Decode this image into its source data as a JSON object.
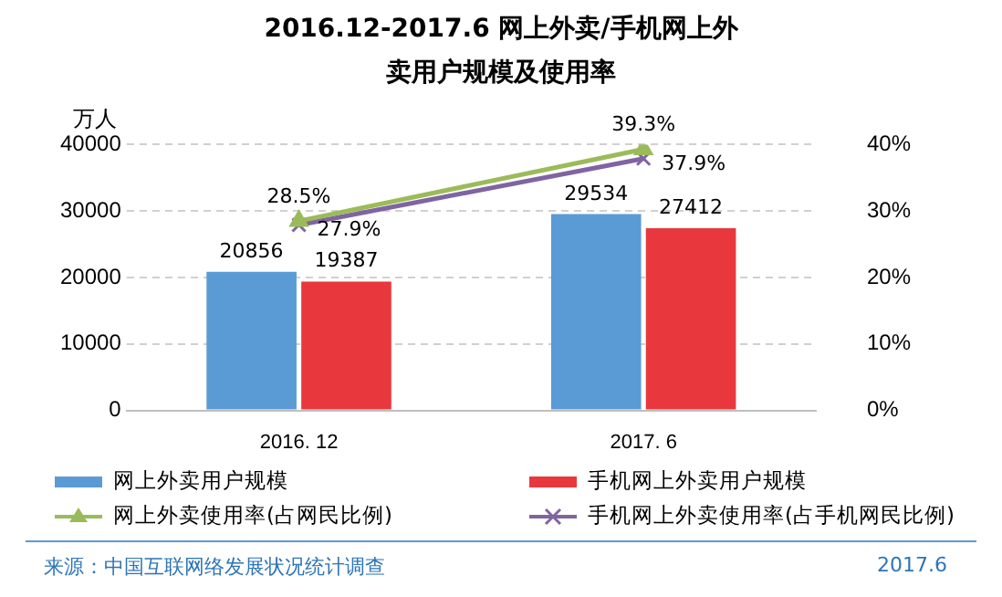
{
  "chart_data": {
    "type": "bar",
    "title": "2016.12-2017.6 网上外卖/手机网上外卖用户规模及使用率",
    "ylabel": "万人",
    "categories": [
      "2016. 12",
      "2017. 6"
    ],
    "series": [
      {
        "name": "网上外卖用户规模",
        "color": "#5b9bd5",
        "values": [
          20856,
          29534
        ],
        "value_labels": [
          "20856",
          "29534"
        ]
      },
      {
        "name": "手机网上外卖用户规模",
        "color": "#e8383d",
        "values": [
          19387,
          27412
        ],
        "value_labels": [
          "19387",
          "27412"
        ]
      },
      {
        "type": "line",
        "axis": "y2",
        "name": "网上外卖使用率(占网民比例)",
        "color": "#9bbb59",
        "marker": "triangle",
        "values": [
          28.5,
          39.3
        ],
        "value_labels": [
          "28.5%",
          "39.3%"
        ]
      },
      {
        "type": "line",
        "axis": "y2",
        "name": "手机网上外卖使用率(占手机网民比例)",
        "color": "#8064a2",
        "marker": "cross",
        "values": [
          27.9,
          37.9
        ],
        "value_labels": [
          "27.9%",
          "37.9%"
        ]
      }
    ],
    "ylim": [
      0,
      40000
    ],
    "yticks": [
      0,
      10000,
      20000,
      30000,
      40000
    ],
    "y2lim": [
      0,
      40
    ],
    "y2ticks": [
      {
        "value": 0,
        "label": "0%"
      },
      {
        "value": 10,
        "label": "10%"
      },
      {
        "value": 20,
        "label": "20%"
      },
      {
        "value": 30,
        "label": "30%"
      },
      {
        "value": 40,
        "label": "40%"
      }
    ],
    "grid": "y",
    "legend": "bottom",
    "annotations": [
      "来源：中国互联网络发展状况统计调查",
      "2017.6"
    ]
  }
}
